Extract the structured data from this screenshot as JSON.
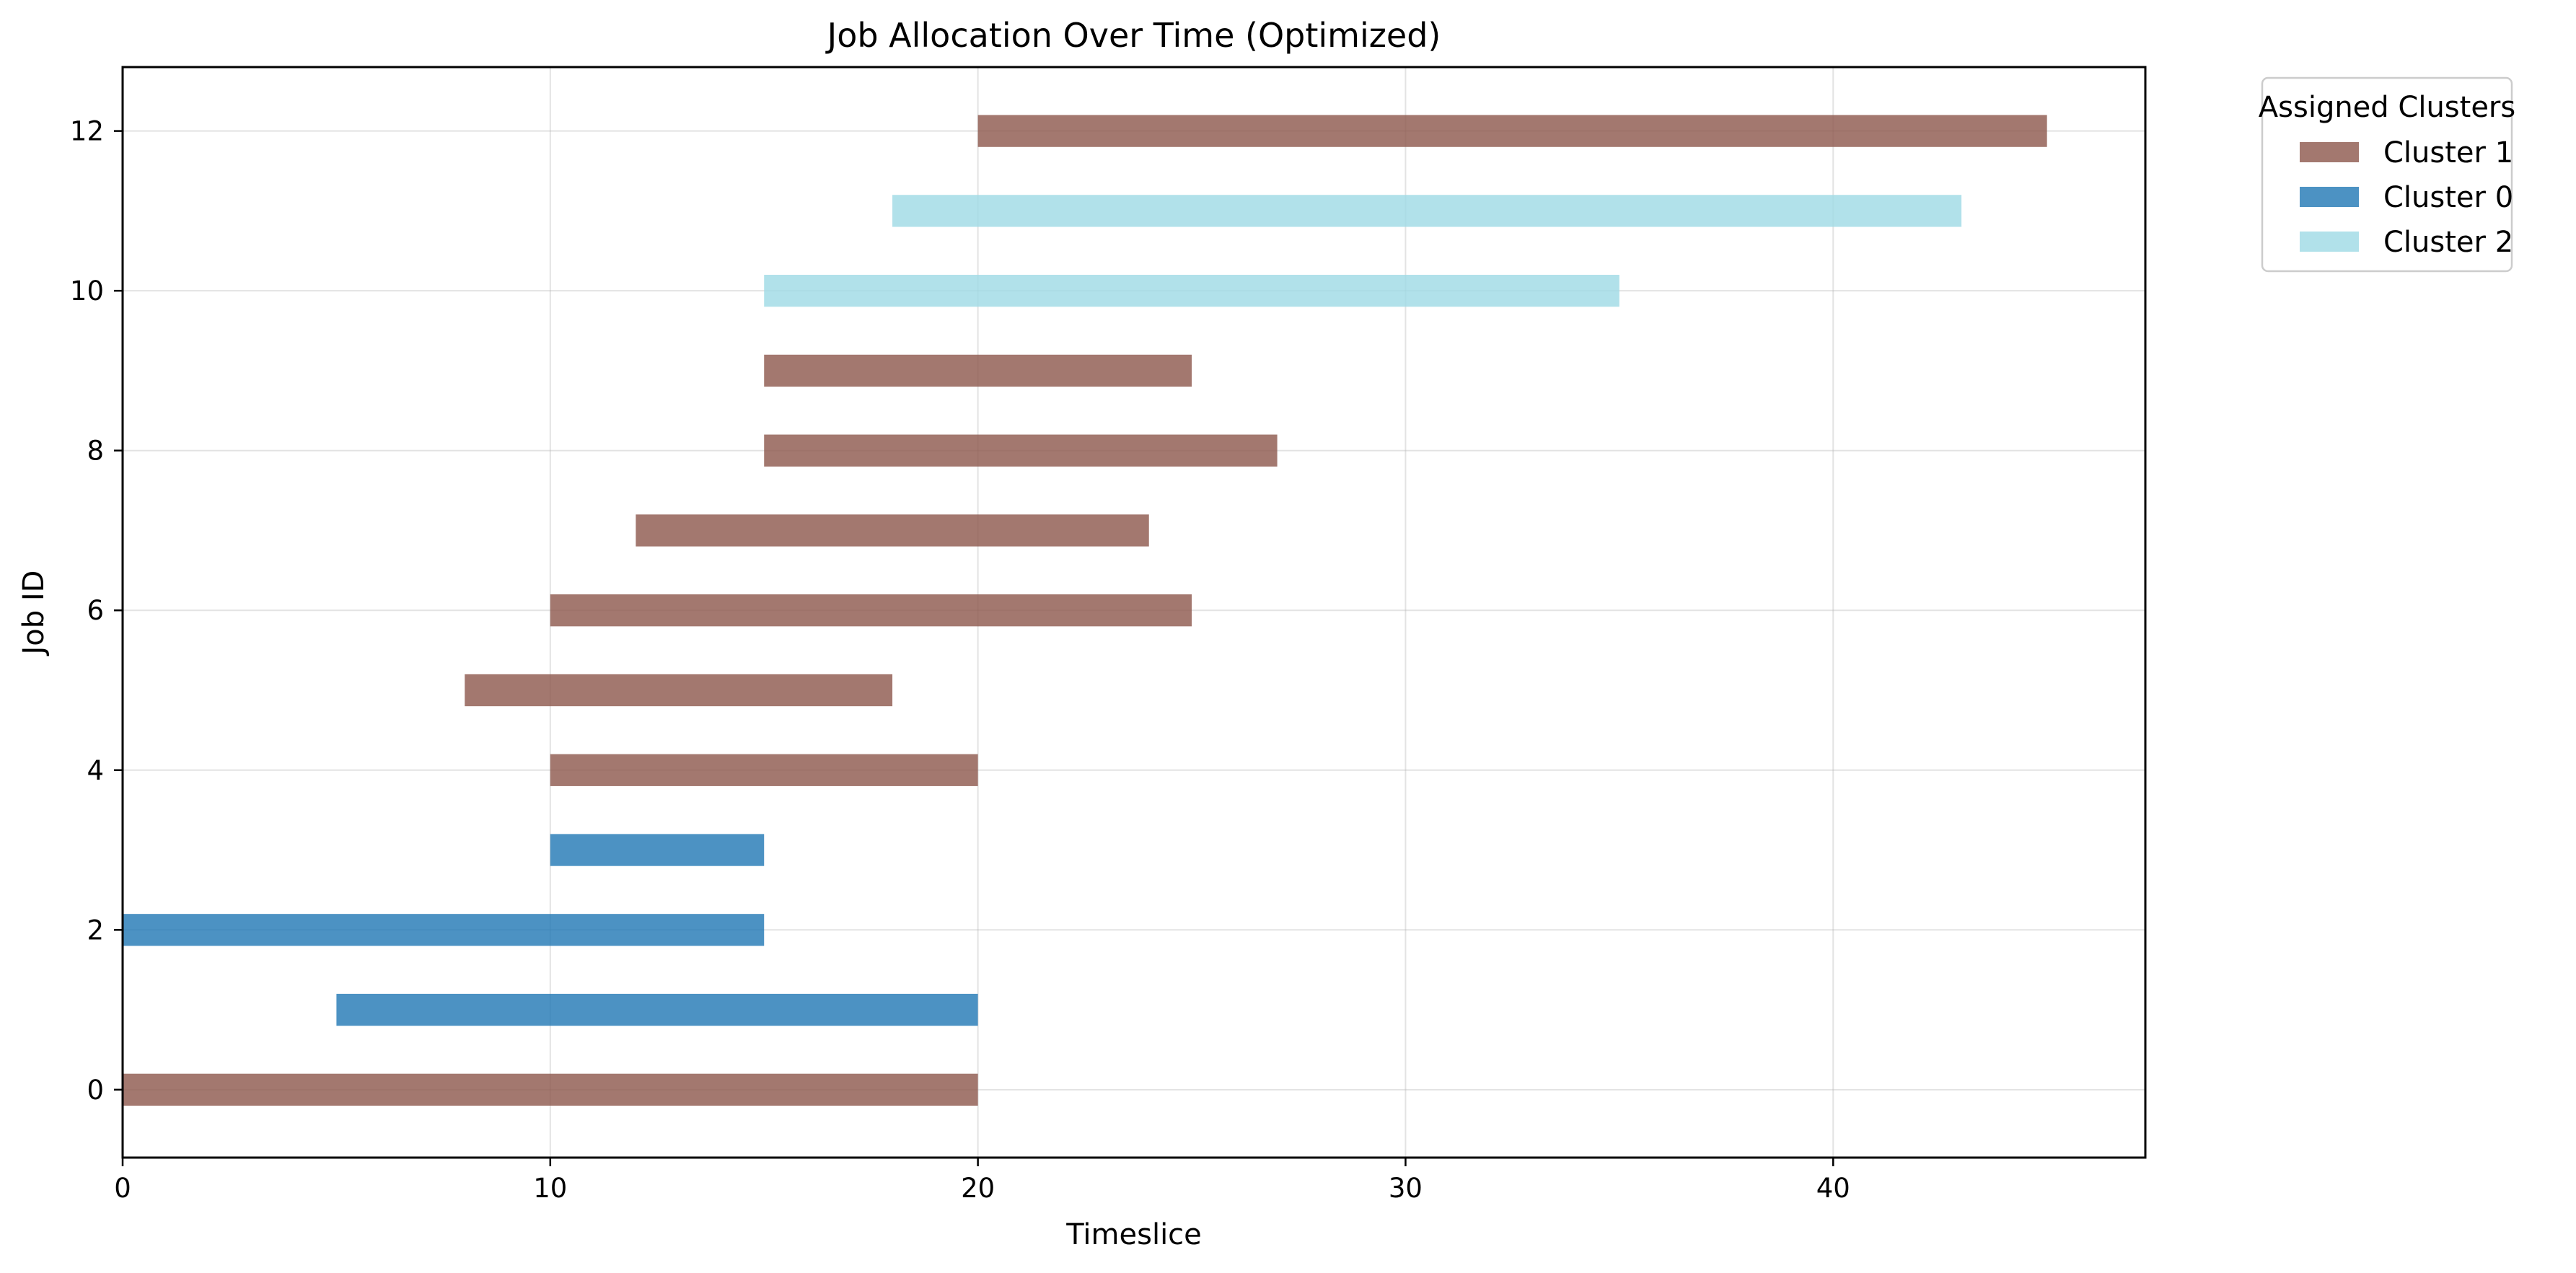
{
  "chart_data": {
    "type": "gantt",
    "title": "Job Allocation Over Time (Optimized)",
    "xlabel": "Timeslice",
    "ylabel": "Job ID",
    "xlim": [
      0,
      47.3
    ],
    "ylim": [
      -0.85,
      12.8
    ],
    "xticks": [
      0,
      10,
      20,
      30,
      40
    ],
    "yticks": [
      0,
      2,
      4,
      6,
      8,
      10,
      12
    ],
    "grid": true,
    "legend": {
      "title": "Assigned Clusters",
      "placement": "outside-top-right",
      "entries": [
        {
          "label": "Cluster 1",
          "color": "#8c564b"
        },
        {
          "label": "Cluster 0",
          "color": "#1f77b4"
        },
        {
          "label": "Cluster 2",
          "color": "#9edae5"
        }
      ]
    },
    "cluster_colors": {
      "Cluster 0": "#1f77b4",
      "Cluster 1": "#8c564b",
      "Cluster 2": "#9edae5"
    },
    "bar_alpha": 0.8,
    "jobs": [
      {
        "job": 0,
        "start": 0,
        "end": 20,
        "cluster": "Cluster 1"
      },
      {
        "job": 1,
        "start": 5,
        "end": 20,
        "cluster": "Cluster 0"
      },
      {
        "job": 2,
        "start": 0,
        "end": 15,
        "cluster": "Cluster 0"
      },
      {
        "job": 3,
        "start": 10,
        "end": 15,
        "cluster": "Cluster 0"
      },
      {
        "job": 4,
        "start": 10,
        "end": 20,
        "cluster": "Cluster 1"
      },
      {
        "job": 5,
        "start": 8,
        "end": 18,
        "cluster": "Cluster 1"
      },
      {
        "job": 6,
        "start": 10,
        "end": 25,
        "cluster": "Cluster 1"
      },
      {
        "job": 7,
        "start": 12,
        "end": 24,
        "cluster": "Cluster 1"
      },
      {
        "job": 8,
        "start": 15,
        "end": 27,
        "cluster": "Cluster 1"
      },
      {
        "job": 9,
        "start": 15,
        "end": 25,
        "cluster": "Cluster 1"
      },
      {
        "job": 10,
        "start": 15,
        "end": 35,
        "cluster": "Cluster 2"
      },
      {
        "job": 11,
        "start": 18,
        "end": 43,
        "cluster": "Cluster 2"
      },
      {
        "job": 12,
        "start": 20,
        "end": 45,
        "cluster": "Cluster 1"
      }
    ]
  }
}
